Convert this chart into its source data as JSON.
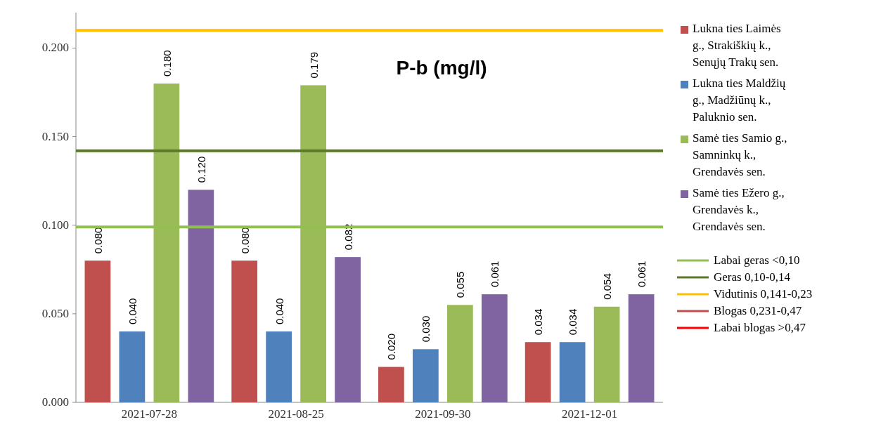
{
  "chart_data": {
    "type": "bar",
    "title": "P-b (mg/l)",
    "categories": [
      "2021-07-28",
      "2021-08-25",
      "2021-09-30",
      "2021-12-01"
    ],
    "series": [
      {
        "name": "Lukna ties Laimės g., Strakiškių k., Senųjų Trakų sen.",
        "color": "#c0504d",
        "values": [
          0.08,
          0.08,
          0.02,
          0.034
        ],
        "value_labels": [
          "0.080",
          "0.080",
          "0.020",
          "0.034"
        ]
      },
      {
        "name": "Lukna ties Maldžių g., Madžiūnų k., Paluknio sen.",
        "color": "#4f81bd",
        "values": [
          0.04,
          0.04,
          0.03,
          0.034
        ],
        "value_labels": [
          "0.040",
          "0.040",
          "0.030",
          "0.034"
        ]
      },
      {
        "name": "Samė ties Samio g., Samninkų k., Grendavės sen.",
        "color": "#9bbb59",
        "values": [
          0.18,
          0.179,
          0.055,
          0.054
        ],
        "value_labels": [
          "0.180",
          "0.179",
          "0.055",
          "0.054"
        ]
      },
      {
        "name": "Samė ties Ežero g., Grendavės k., Grendavės sen.",
        "color": "#8064a2",
        "values": [
          0.12,
          0.082,
          0.061,
          0.061
        ],
        "value_labels": [
          "0.120",
          "0.082",
          "0.061",
          "0.061"
        ]
      }
    ],
    "ylim": [
      0,
      0.22
    ],
    "yticks": [
      {
        "value": 0,
        "label": "0.000"
      },
      {
        "value": 0.05,
        "label": "0.050"
      },
      {
        "value": 0.1,
        "label": "0.100"
      },
      {
        "value": 0.15,
        "label": "0.150"
      },
      {
        "value": 0.2,
        "label": "0.200"
      }
    ],
    "ref_lines": [
      {
        "axis": "y",
        "value": 0.099,
        "label": "Labai geras <0,10",
        "color": "#92c050"
      },
      {
        "axis": "y",
        "value": 0.142,
        "label": "Geras 0,10-0,14",
        "color": "#5a7a2a"
      },
      {
        "axis": "y",
        "value": 0.21,
        "label": "Vidutinis 0,141-0,23",
        "color": "#ffc000"
      },
      {
        "axis": "y",
        "value": null,
        "label": "Blogas 0,231-0,47",
        "color": "#c0504d"
      },
      {
        "axis": "y",
        "value": null,
        "label": "Labai blogas >0,47",
        "color": "#ff0000"
      }
    ],
    "grid": false,
    "legend": "right"
  }
}
